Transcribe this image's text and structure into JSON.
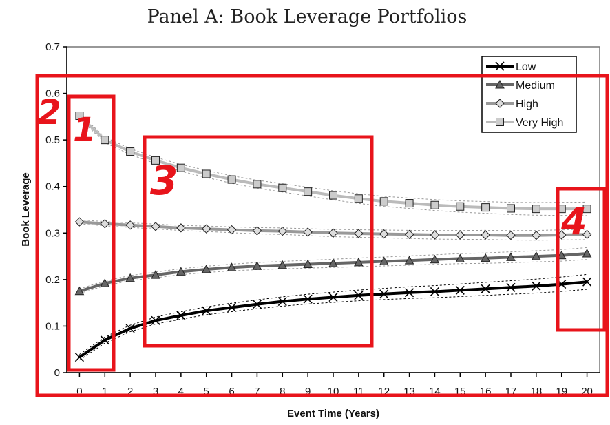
{
  "chart_data": {
    "type": "line",
    "title": "Panel A: Book Leverage Portfolios",
    "xlabel": "Event Time (Years)",
    "ylabel": "Book Leverage",
    "x": [
      0,
      1,
      2,
      3,
      4,
      5,
      6,
      7,
      8,
      9,
      10,
      11,
      12,
      13,
      14,
      15,
      16,
      17,
      18,
      19,
      20
    ],
    "xlim": [
      -0.5,
      20.5
    ],
    "ylim": [
      0,
      0.7
    ],
    "yticks": [
      "0",
      "0.1",
      "0.2",
      "0.3",
      "0.4",
      "0.5",
      "0.6",
      "0.7"
    ],
    "xticks": [
      "0",
      "1",
      "2",
      "3",
      "4",
      "5",
      "6",
      "7",
      "8",
      "9",
      "10",
      "11",
      "12",
      "13",
      "14",
      "15",
      "16",
      "17",
      "18",
      "19",
      "20"
    ],
    "grid": false,
    "legend_position": "top-right",
    "series": [
      {
        "name": "Low",
        "marker": "x",
        "color": "#000000",
        "values": [
          0.033,
          0.07,
          0.095,
          0.112,
          0.123,
          0.133,
          0.14,
          0.147,
          0.153,
          0.158,
          0.162,
          0.166,
          0.169,
          0.172,
          0.174,
          0.177,
          0.18,
          0.183,
          0.186,
          0.19,
          0.195
        ]
      },
      {
        "name": "Medium",
        "marker": "triangle",
        "color": "#666666",
        "values": [
          0.175,
          0.192,
          0.203,
          0.21,
          0.217,
          0.222,
          0.226,
          0.229,
          0.231,
          0.233,
          0.235,
          0.237,
          0.239,
          0.241,
          0.243,
          0.245,
          0.246,
          0.248,
          0.25,
          0.252,
          0.256
        ]
      },
      {
        "name": "High",
        "marker": "diamond",
        "color": "#999999",
        "values": [
          0.324,
          0.32,
          0.317,
          0.314,
          0.311,
          0.309,
          0.307,
          0.305,
          0.304,
          0.302,
          0.3,
          0.299,
          0.298,
          0.297,
          0.296,
          0.296,
          0.296,
          0.295,
          0.295,
          0.296,
          0.297
        ]
      },
      {
        "name": "Very High",
        "marker": "square",
        "color": "#bbbbbb",
        "values": [
          0.552,
          0.5,
          0.475,
          0.456,
          0.44,
          0.427,
          0.415,
          0.405,
          0.397,
          0.389,
          0.381,
          0.374,
          0.368,
          0.364,
          0.36,
          0.357,
          0.355,
          0.353,
          0.352,
          0.352,
          0.352
        ]
      }
    ],
    "annotations": [
      {
        "label": "2"
      },
      {
        "label": "1"
      },
      {
        "label": "3"
      },
      {
        "label": "4"
      }
    ],
    "annotation_color": "#e8141b"
  }
}
